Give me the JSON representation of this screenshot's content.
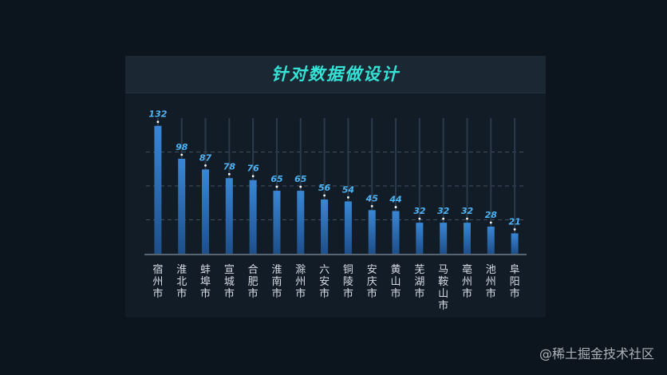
{
  "panel": {
    "title": "针对数据做设计"
  },
  "watermark": "@稀土掘金技术社区",
  "chart_data": {
    "type": "bar",
    "title": "针对数据做设计",
    "xlabel": "",
    "ylabel": "",
    "ylim": [
      0,
      140
    ],
    "grid": true,
    "categories": [
      "宿州市",
      "淮北市",
      "蚌埠市",
      "宣城市",
      "合肥市",
      "淮南市",
      "滁州市",
      "六安市",
      "铜陵市",
      "安庆市",
      "黄山市",
      "芜湖市",
      "马鞍山市",
      "亳州市",
      "池州市",
      "阜阳市"
    ],
    "values": [
      132,
      98,
      87,
      78,
      76,
      65,
      65,
      56,
      54,
      45,
      44,
      32,
      32,
      32,
      28,
      21
    ],
    "colors": {
      "bar_top": "#3a86d4",
      "bar_bottom": "#1d4f8a",
      "label": "#4fb4f5",
      "axis_text": "#d6dde5",
      "grid": "#3e5163",
      "stem": "#2a3a4b"
    }
  }
}
